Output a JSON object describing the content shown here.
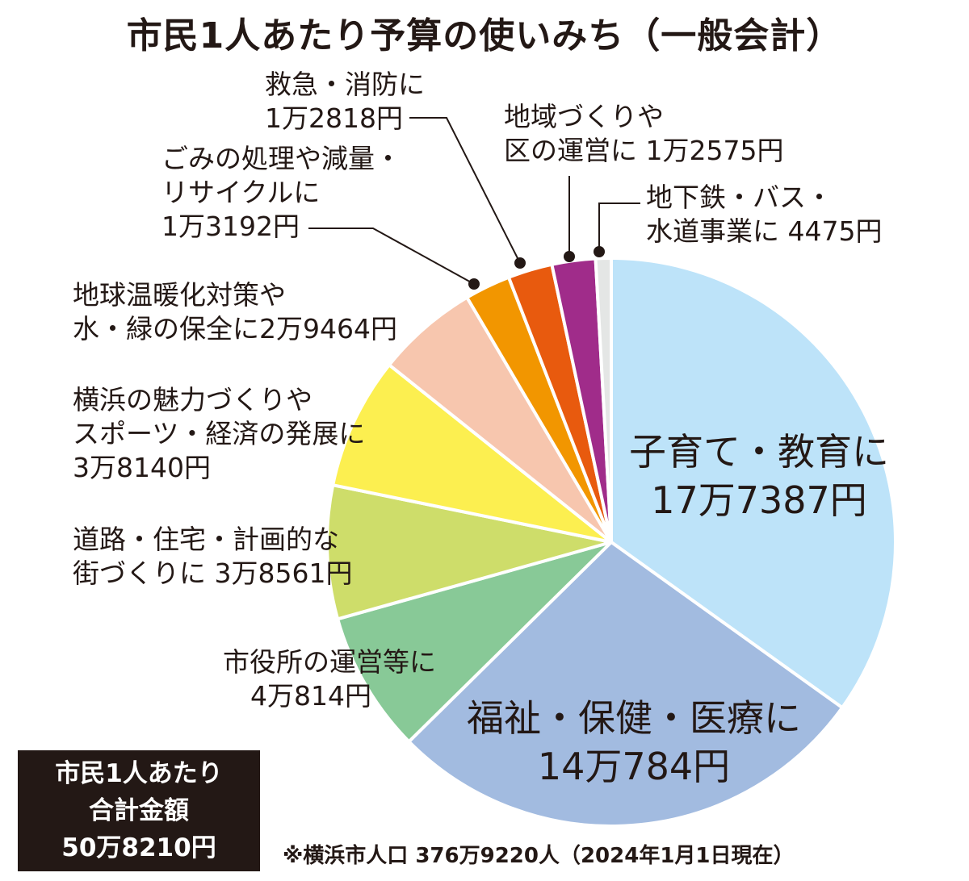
{
  "chart_data": {
    "type": "pie",
    "title": "市民1人あたり予算の使いみち（一般会計）",
    "slices": [
      {
        "line1": "子育て・教育に",
        "line2": "17万7387円",
        "value": 177387,
        "color": "#bde3f9"
      },
      {
        "line1": "福祉・保健・医療に",
        "line2": "14万784円",
        "value": 140784,
        "color": "#a2bbe0"
      },
      {
        "line1": "市役所の運営等に",
        "line2": "4万814円",
        "value": 40814,
        "color": "#88c997"
      },
      {
        "line1": "道路・住宅・計画的な",
        "line2": "街づくりに 3万8561円",
        "value": 38561,
        "color": "#cedd6a"
      },
      {
        "line1": "横浜の魅力づくりや",
        "line2": "スポーツ・経済の発展に",
        "line3": "3万8140円",
        "value": 38140,
        "color": "#fcef50"
      },
      {
        "line1": "地球温暖化対策や",
        "line2": "水・緑の保全に2万9464円",
        "value": 29464,
        "color": "#f7c6ae"
      },
      {
        "line1": "ごみの処理や減量・",
        "line2": "リサイクルに",
        "line3": "1万3192円",
        "value": 13192,
        "color": "#f29600"
      },
      {
        "line1": "救急・消防に",
        "line2": "1万2818円",
        "value": 12818,
        "color": "#e85a0e"
      },
      {
        "line1": "地域づくりや",
        "line2": "区の運営に 1万2575円",
        "value": 12575,
        "color": "#a02c8a"
      },
      {
        "line1": "地下鉄・バス・",
        "line2": "水道事業に 4475円",
        "value": 4475,
        "color": "#e4e6e5"
      }
    ]
  },
  "total_box": {
    "line1": "市民1人あたり",
    "line2": "合計金額",
    "line3": "50万8210円"
  },
  "footnote": "※横浜市人口 376万9220人（2024年1月1日現在）"
}
